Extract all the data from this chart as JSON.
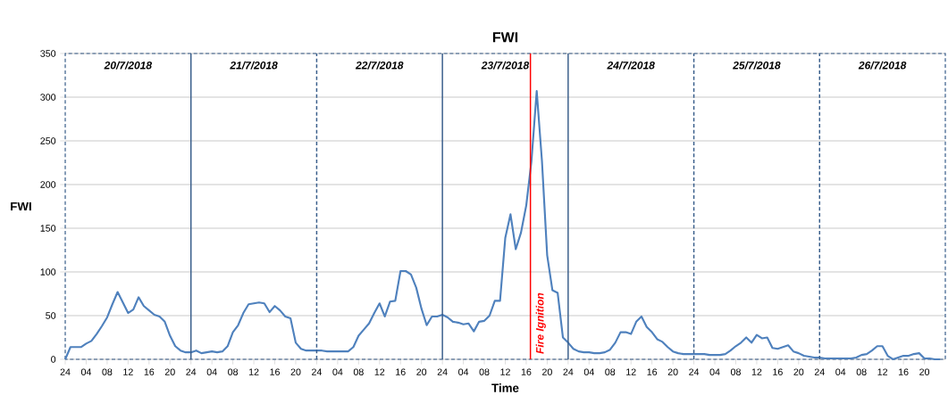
{
  "chart_data": {
    "type": "line",
    "title": "FWI",
    "xlabel": "Time",
    "ylabel": "FWI",
    "x": [
      "2018-07-20T00:00",
      "2018-07-20T01:00",
      "2018-07-20T02:00",
      "2018-07-20T03:00",
      "2018-07-20T04:00",
      "2018-07-20T05:00",
      "2018-07-20T06:00",
      "2018-07-20T07:00",
      "2018-07-20T08:00",
      "2018-07-20T09:00",
      "2018-07-20T10:00",
      "2018-07-20T11:00",
      "2018-07-20T12:00",
      "2018-07-20T13:00",
      "2018-07-20T14:00",
      "2018-07-20T15:00",
      "2018-07-20T16:00",
      "2018-07-20T17:00",
      "2018-07-20T18:00",
      "2018-07-20T19:00",
      "2018-07-20T20:00",
      "2018-07-20T21:00",
      "2018-07-20T22:00",
      "2018-07-20T23:00",
      "2018-07-21T00:00",
      "2018-07-21T01:00",
      "2018-07-21T02:00",
      "2018-07-21T03:00",
      "2018-07-21T04:00",
      "2018-07-21T05:00",
      "2018-07-21T06:00",
      "2018-07-21T07:00",
      "2018-07-21T08:00",
      "2018-07-21T09:00",
      "2018-07-21T10:00",
      "2018-07-21T11:00",
      "2018-07-21T12:00",
      "2018-07-21T13:00",
      "2018-07-21T14:00",
      "2018-07-21T15:00",
      "2018-07-21T16:00",
      "2018-07-21T17:00",
      "2018-07-21T18:00",
      "2018-07-21T19:00",
      "2018-07-21T20:00",
      "2018-07-21T21:00",
      "2018-07-21T22:00",
      "2018-07-21T23:00",
      "2018-07-22T00:00",
      "2018-07-22T01:00",
      "2018-07-22T02:00",
      "2018-07-22T03:00",
      "2018-07-22T04:00",
      "2018-07-22T05:00",
      "2018-07-22T06:00",
      "2018-07-22T07:00",
      "2018-07-22T08:00",
      "2018-07-22T09:00",
      "2018-07-22T10:00",
      "2018-07-22T11:00",
      "2018-07-22T12:00",
      "2018-07-22T13:00",
      "2018-07-22T14:00",
      "2018-07-22T15:00",
      "2018-07-22T16:00",
      "2018-07-22T17:00",
      "2018-07-22T18:00",
      "2018-07-22T19:00",
      "2018-07-22T20:00",
      "2018-07-22T21:00",
      "2018-07-22T22:00",
      "2018-07-22T23:00",
      "2018-07-23T00:00",
      "2018-07-23T01:00",
      "2018-07-23T02:00",
      "2018-07-23T03:00",
      "2018-07-23T04:00",
      "2018-07-23T05:00",
      "2018-07-23T06:00",
      "2018-07-23T07:00",
      "2018-07-23T08:00",
      "2018-07-23T09:00",
      "2018-07-23T10:00",
      "2018-07-23T11:00",
      "2018-07-23T12:00",
      "2018-07-23T13:00",
      "2018-07-23T14:00",
      "2018-07-23T15:00",
      "2018-07-23T16:00",
      "2018-07-23T17:00",
      "2018-07-23T18:00",
      "2018-07-23T19:00",
      "2018-07-23T20:00",
      "2018-07-23T21:00",
      "2018-07-23T22:00",
      "2018-07-23T23:00",
      "2018-07-24T00:00",
      "2018-07-24T01:00",
      "2018-07-24T02:00",
      "2018-07-24T03:00",
      "2018-07-24T04:00",
      "2018-07-24T05:00",
      "2018-07-24T06:00",
      "2018-07-24T07:00",
      "2018-07-24T08:00",
      "2018-07-24T09:00",
      "2018-07-24T10:00",
      "2018-07-24T11:00",
      "2018-07-24T12:00",
      "2018-07-24T13:00",
      "2018-07-24T14:00",
      "2018-07-24T15:00",
      "2018-07-24T16:00",
      "2018-07-24T17:00",
      "2018-07-24T18:00",
      "2018-07-24T19:00",
      "2018-07-24T20:00",
      "2018-07-24T21:00",
      "2018-07-24T22:00",
      "2018-07-24T23:00",
      "2018-07-25T00:00",
      "2018-07-25T01:00",
      "2018-07-25T02:00",
      "2018-07-25T03:00",
      "2018-07-25T04:00",
      "2018-07-25T05:00",
      "2018-07-25T06:00",
      "2018-07-25T07:00",
      "2018-07-25T08:00",
      "2018-07-25T09:00",
      "2018-07-25T10:00",
      "2018-07-25T11:00",
      "2018-07-25T12:00",
      "2018-07-25T13:00",
      "2018-07-25T14:00",
      "2018-07-25T15:00",
      "2018-07-25T16:00",
      "2018-07-25T17:00",
      "2018-07-25T18:00",
      "2018-07-25T19:00",
      "2018-07-25T20:00",
      "2018-07-25T21:00",
      "2018-07-25T22:00",
      "2018-07-25T23:00",
      "2018-07-26T00:00",
      "2018-07-26T01:00",
      "2018-07-26T02:00",
      "2018-07-26T03:00",
      "2018-07-26T04:00",
      "2018-07-26T05:00",
      "2018-07-26T06:00",
      "2018-07-26T07:00",
      "2018-07-26T08:00",
      "2018-07-26T09:00",
      "2018-07-26T10:00",
      "2018-07-26T11:00",
      "2018-07-26T12:00",
      "2018-07-26T13:00",
      "2018-07-26T14:00",
      "2018-07-26T15:00",
      "2018-07-26T16:00",
      "2018-07-26T17:00",
      "2018-07-26T18:00",
      "2018-07-26T19:00",
      "2018-07-26T20:00",
      "2018-07-26T21:00",
      "2018-07-26T22:00",
      "2018-07-26T23:00"
    ],
    "series": [
      {
        "color": "#4f81bd",
        "values": [
          0,
          14,
          14,
          14,
          18,
          21,
          29,
          38,
          48,
          63,
          77,
          65,
          53,
          57,
          71,
          61,
          56,
          51,
          49,
          43,
          27,
          15,
          10,
          8,
          8,
          10,
          7,
          8,
          9,
          8,
          9,
          15,
          31,
          39,
          53,
          63,
          64,
          65,
          64,
          54,
          61,
          56,
          49,
          47,
          19,
          12,
          10,
          10,
          10,
          10,
          9,
          9,
          9,
          9,
          9,
          14,
          27,
          34,
          41,
          53,
          64,
          49,
          66,
          67,
          101,
          101,
          97,
          82,
          58,
          39,
          49,
          49,
          51,
          48,
          43,
          42,
          40,
          41,
          32,
          43,
          44,
          50,
          67,
          67,
          139,
          166,
          126,
          145,
          176,
          227,
          307,
          227,
          119,
          79,
          76,
          25,
          19,
          12,
          9,
          8,
          8,
          7,
          7,
          8,
          11,
          19,
          31,
          31,
          29,
          43,
          49,
          37,
          31,
          23,
          20,
          14,
          9,
          7,
          6,
          6,
          6,
          6,
          6,
          5,
          5,
          5,
          6,
          10,
          15,
          19,
          25,
          19,
          28,
          24,
          25,
          13,
          12,
          14,
          16,
          9,
          7,
          4,
          3,
          2,
          2,
          1,
          1,
          1,
          1,
          1,
          1,
          2,
          5,
          6,
          10,
          15,
          15,
          4,
          0,
          2,
          4,
          4,
          6,
          7,
          1,
          1,
          0,
          0
        ]
      }
    ],
    "xlim": [
      "2018-07-20T00:00",
      "2018-07-27T00:00"
    ],
    "ylim": [
      0,
      350
    ],
    "xticks": [
      {
        "value": "2018-07-20T00:00",
        "label": "24"
      },
      {
        "value": "2018-07-20T04:00",
        "label": "04"
      },
      {
        "value": "2018-07-20T08:00",
        "label": "08"
      },
      {
        "value": "2018-07-20T12:00",
        "label": "12"
      },
      {
        "value": "2018-07-20T16:00",
        "label": "16"
      },
      {
        "value": "2018-07-20T20:00",
        "label": "20"
      },
      {
        "value": "2018-07-21T00:00",
        "label": "24"
      },
      {
        "value": "2018-07-21T04:00",
        "label": "04"
      },
      {
        "value": "2018-07-21T08:00",
        "label": "08"
      },
      {
        "value": "2018-07-21T12:00",
        "label": "12"
      },
      {
        "value": "2018-07-21T16:00",
        "label": "16"
      },
      {
        "value": "2018-07-21T20:00",
        "label": "20"
      },
      {
        "value": "2018-07-22T00:00",
        "label": "24"
      },
      {
        "value": "2018-07-22T04:00",
        "label": "04"
      },
      {
        "value": "2018-07-22T08:00",
        "label": "08"
      },
      {
        "value": "2018-07-22T12:00",
        "label": "12"
      },
      {
        "value": "2018-07-22T16:00",
        "label": "16"
      },
      {
        "value": "2018-07-22T20:00",
        "label": "20"
      },
      {
        "value": "2018-07-23T00:00",
        "label": "24"
      },
      {
        "value": "2018-07-23T04:00",
        "label": "04"
      },
      {
        "value": "2018-07-23T08:00",
        "label": "08"
      },
      {
        "value": "2018-07-23T12:00",
        "label": "12"
      },
      {
        "value": "2018-07-23T16:00",
        "label": "16"
      },
      {
        "value": "2018-07-23T20:00",
        "label": "20"
      },
      {
        "value": "2018-07-24T00:00",
        "label": "24"
      },
      {
        "value": "2018-07-24T04:00",
        "label": "04"
      },
      {
        "value": "2018-07-24T08:00",
        "label": "08"
      },
      {
        "value": "2018-07-24T12:00",
        "label": "12"
      },
      {
        "value": "2018-07-24T16:00",
        "label": "16"
      },
      {
        "value": "2018-07-24T20:00",
        "label": "20"
      },
      {
        "value": "2018-07-25T00:00",
        "label": "24"
      },
      {
        "value": "2018-07-25T04:00",
        "label": "04"
      },
      {
        "value": "2018-07-25T08:00",
        "label": "08"
      },
      {
        "value": "2018-07-25T12:00",
        "label": "12"
      },
      {
        "value": "2018-07-25T16:00",
        "label": "16"
      },
      {
        "value": "2018-07-25T20:00",
        "label": "20"
      },
      {
        "value": "2018-07-26T00:00",
        "label": "24"
      },
      {
        "value": "2018-07-26T04:00",
        "label": "04"
      },
      {
        "value": "2018-07-26T08:00",
        "label": "08"
      },
      {
        "value": "2018-07-26T12:00",
        "label": "12"
      },
      {
        "value": "2018-07-26T16:00",
        "label": "16"
      },
      {
        "value": "2018-07-26T20:00",
        "label": "20"
      }
    ],
    "yticks": [
      0,
      50,
      100,
      150,
      200,
      250,
      300,
      350
    ],
    "grid": "y",
    "marker": "none",
    "line_style": "solid",
    "ref_lines": [
      {
        "axis": "x",
        "value": "2018-07-23T16:48",
        "label": "Fire Ignition",
        "color": "#ff0000",
        "line_style": "solid"
      },
      {
        "axis": "x",
        "value": "2018-07-21T00:00",
        "color": "#385d8a",
        "line_style": "solid"
      },
      {
        "axis": "x",
        "value": "2018-07-22T00:00",
        "color": "#385d8a",
        "line_style": "dashed"
      },
      {
        "axis": "x",
        "value": "2018-07-23T00:00",
        "color": "#385d8a",
        "line_style": "solid"
      },
      {
        "axis": "x",
        "value": "2018-07-24T00:00",
        "color": "#385d8a",
        "line_style": "solid"
      },
      {
        "axis": "x",
        "value": "2018-07-25T00:00",
        "color": "#385d8a",
        "line_style": "dashed"
      },
      {
        "axis": "x",
        "value": "2018-07-26T00:00",
        "color": "#385d8a",
        "line_style": "dashed"
      }
    ],
    "annotations": [
      "20/7/2018",
      "21/7/2018",
      "22/7/2018",
      "23/7/2018",
      "24/7/2018",
      "25/7/2018",
      "26/7/2018"
    ]
  }
}
